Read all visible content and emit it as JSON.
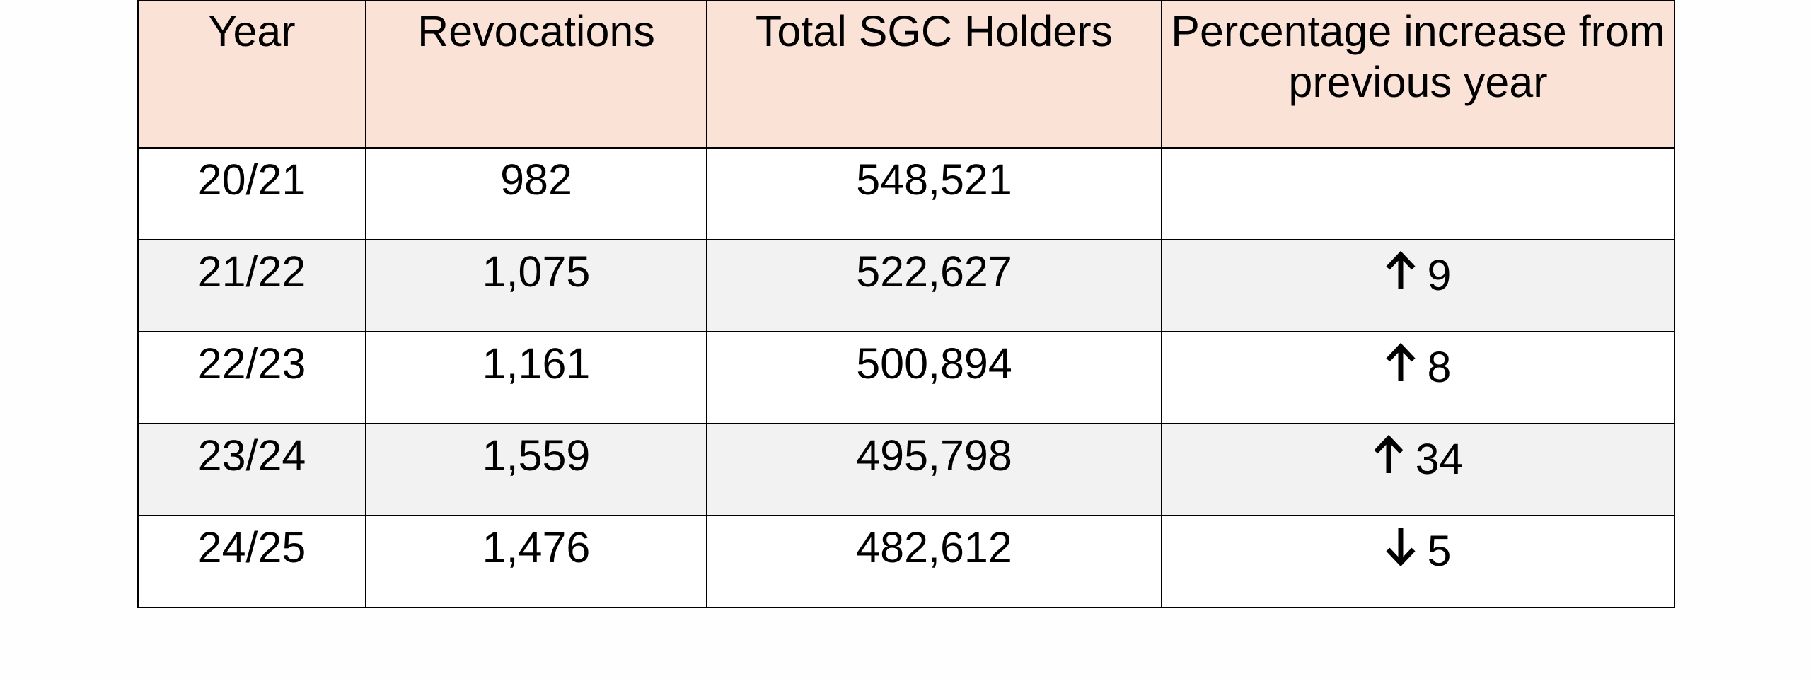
{
  "chart_data": {
    "type": "table",
    "columns": [
      "Year",
      "Revocations",
      "Total SGC Holders",
      "Percentage increase from previous year"
    ],
    "rows": [
      {
        "year": "20/21",
        "revocations": "982",
        "holders": "548,521",
        "direction": "",
        "pct": ""
      },
      {
        "year": "21/22",
        "revocations": "1,075",
        "holders": "522,627",
        "direction": "up",
        "pct": "9"
      },
      {
        "year": "22/23",
        "revocations": "1,161",
        "holders": "500,894",
        "direction": "up",
        "pct": "8"
      },
      {
        "year": "23/24",
        "revocations": "1,559",
        "holders": "495,798",
        "direction": "up",
        "pct": "34"
      },
      {
        "year": "24/25",
        "revocations": "1,476",
        "holders": "482,612",
        "direction": "down",
        "pct": "5"
      }
    ]
  },
  "colors": {
    "header_bg": "#fbe2d6",
    "band_bg": "#f2f2f2",
    "row_bg": "#ffffff",
    "border": "#000000"
  },
  "icons": {
    "up": "arrow-up-icon",
    "down": "arrow-down-icon"
  }
}
